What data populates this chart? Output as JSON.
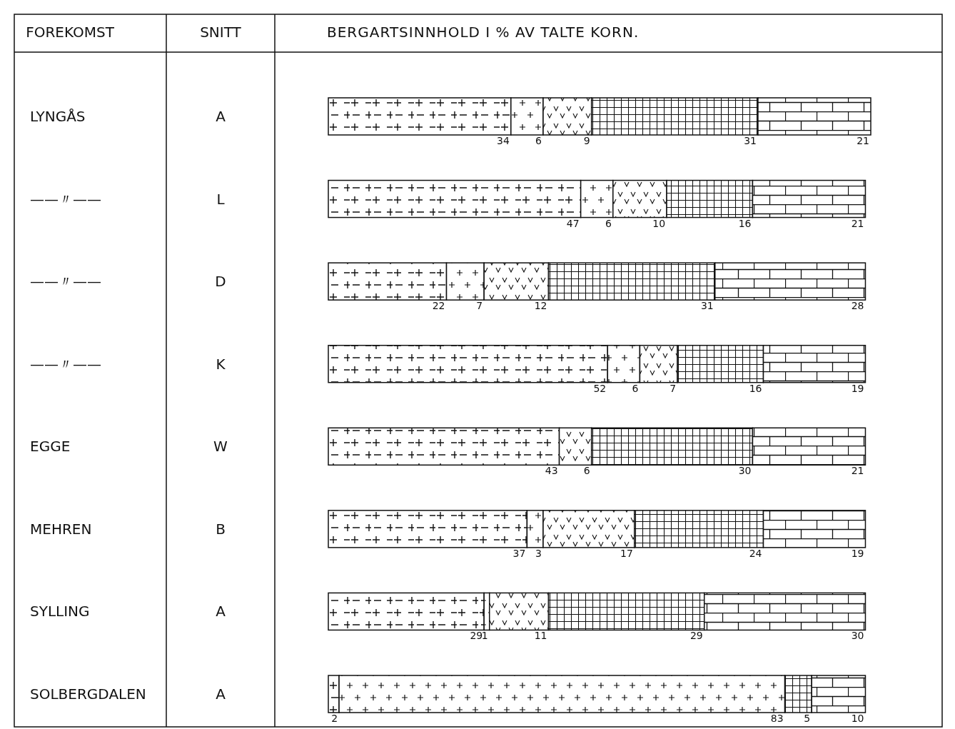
{
  "chart_data": {
    "type": "bar",
    "orientation": "horizontal",
    "stacked": true,
    "data_labels": true,
    "title": "BERGARTSINNHOLD I % AV TALTE KORN.",
    "ylabel": "SNITT",
    "annotations": [
      "FOREKOMST",
      "LYNGÅS",
      "——〃——",
      "——〃——",
      "——〃——",
      "EGGE",
      "MEHREN",
      "SYLLING",
      "SOLBERGDALEN"
    ],
    "categories": [
      "A",
      "L",
      "D",
      "K",
      "W",
      "B",
      "A",
      "A"
    ],
    "series": [
      {
        "color": "#111111",
        "values": [
          34,
          47,
          22,
          52,
          43,
          37,
          29,
          2
        ]
      },
      {
        "color": "#111111",
        "values": [
          6,
          6,
          7,
          6,
          null,
          3,
          1,
          83
        ]
      },
      {
        "color": "#111111",
        "values": [
          9,
          10,
          12,
          7,
          6,
          17,
          11,
          null
        ]
      },
      {
        "color": "#111111",
        "values": [
          31,
          16,
          31,
          16,
          30,
          24,
          29,
          5
        ]
      },
      {
        "color": "#111111",
        "values": [
          21,
          21,
          28,
          19,
          21,
          19,
          30,
          10
        ]
      }
    ]
  }
}
